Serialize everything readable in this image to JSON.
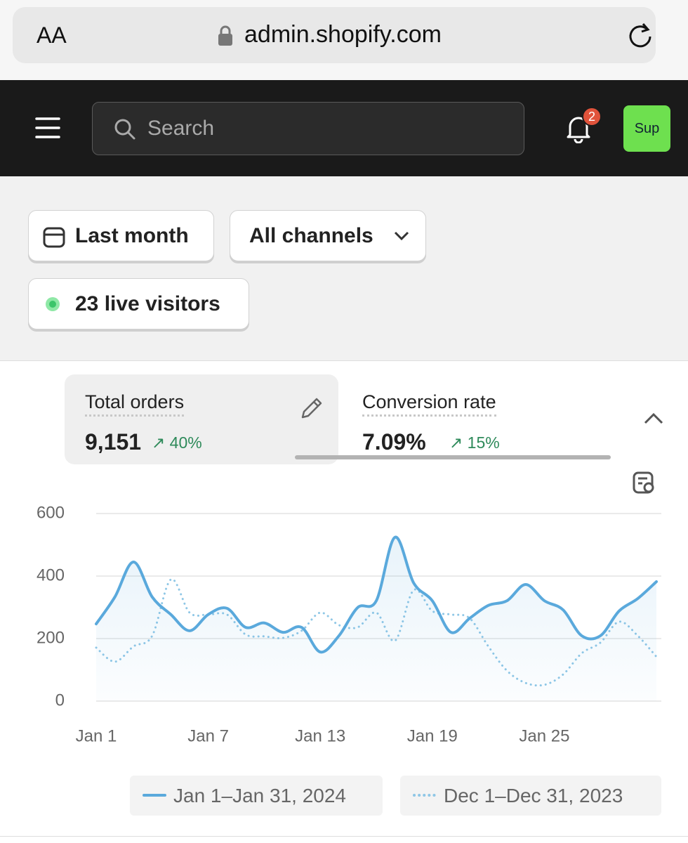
{
  "browser": {
    "text_size": "AA",
    "url": "admin.shopify.com"
  },
  "topbar": {
    "search_placeholder": "Search",
    "notifications": "2",
    "avatar": "Sup"
  },
  "filters": {
    "date": "Last month",
    "channels": "All channels",
    "live_visitors": "23 live visitors"
  },
  "metrics": [
    {
      "label": "Total orders",
      "value": "9,151",
      "change": "40%"
    },
    {
      "label": "Conversion rate",
      "value": "7.09%",
      "change": "15%"
    }
  ],
  "chart_data": {
    "type": "line",
    "categories": [
      "Jan 1",
      null,
      null,
      null,
      null,
      null,
      "Jan 7",
      null,
      null,
      null,
      null,
      null,
      "Jan 13",
      null,
      null,
      null,
      null,
      null,
      "Jan 19",
      null,
      null,
      null,
      null,
      null,
      "Jan 25",
      null,
      null,
      null,
      null,
      null,
      null
    ],
    "series": [
      {
        "name": "Jan 1–Jan 31, 2024",
        "color": "#5aa9dc",
        "style": "solid",
        "values": [
          247,
          333,
          445,
          333,
          277,
          225,
          277,
          297,
          236,
          250,
          220,
          236,
          157,
          209,
          299,
          321,
          524,
          378,
          321,
          220,
          265,
          306,
          321,
          373,
          321,
          292,
          209,
          209,
          288,
          328,
          382
        ]
      },
      {
        "name": "Dec 1–Dec 31, 2023",
        "color": "#8fc7e6",
        "style": "dotted",
        "values": [
          171,
          126,
          175,
          209,
          389,
          283,
          277,
          277,
          213,
          207,
          202,
          225,
          283,
          243,
          236,
          283,
          193,
          355,
          288,
          277,
          265,
          175,
          97,
          58,
          52,
          85,
          153,
          187,
          254,
          209,
          142
        ]
      }
    ],
    "ylim": [
      0,
      600
    ],
    "yticks": [
      0,
      200,
      400,
      600
    ],
    "grid": true
  }
}
